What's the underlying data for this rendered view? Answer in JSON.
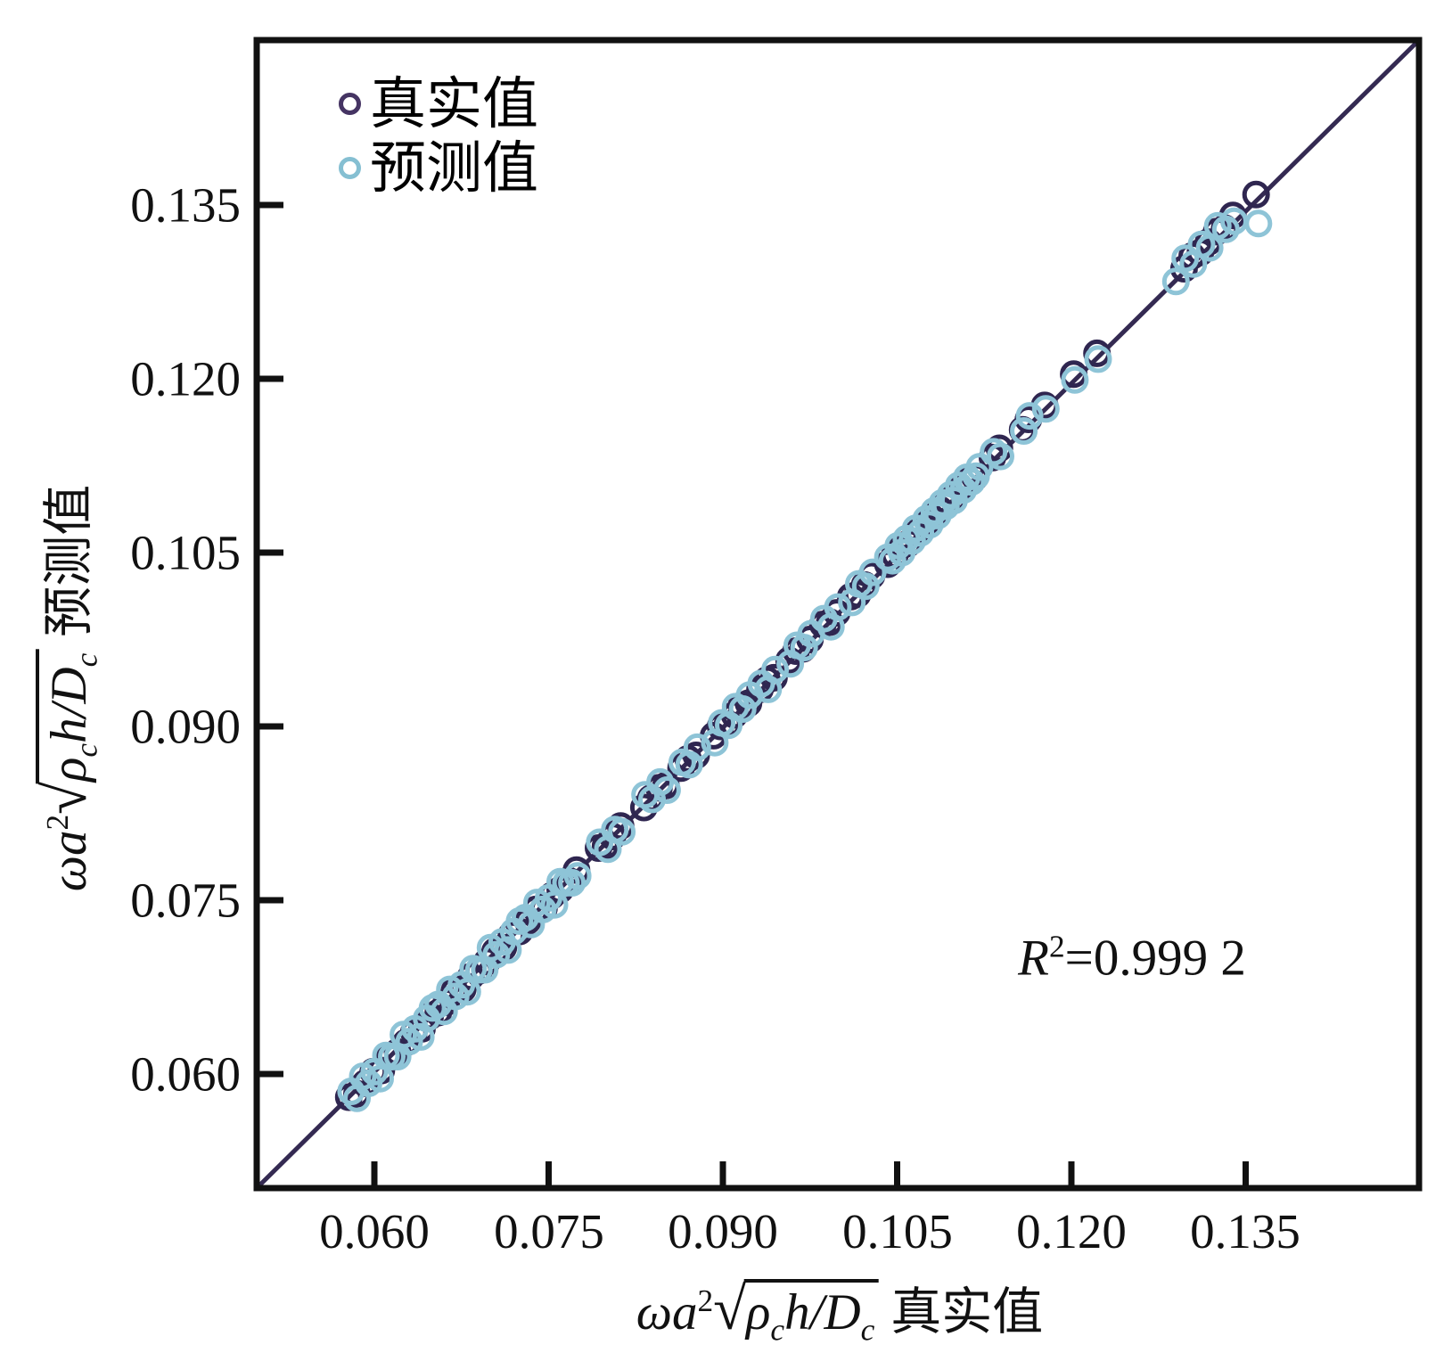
{
  "legend": {
    "items": [
      {
        "label": "真实值",
        "marker": "open-circle",
        "color": "#453463"
      },
      {
        "label": "预测值",
        "marker": "open-circle",
        "color": "#85bfd2"
      }
    ]
  },
  "annotation": {
    "r": "R",
    "sup": "2",
    "value": "=0.999 2"
  },
  "axis_x": {
    "label_parts": {
      "lead": "ωa",
      "sup": "2",
      "sqrt": "√",
      "rho": "ρ",
      "rho_sub": "c",
      "mid": "h/",
      "dee": "D",
      "dee_sub": "c",
      "suffix": "真实值"
    },
    "ticks": [
      "0.060",
      "0.075",
      "0.090",
      "0.105",
      "0.120",
      "0.135"
    ]
  },
  "axis_y": {
    "label_parts": {
      "lead": "ωa",
      "sup": "2",
      "sqrt": "√",
      "rho": "ρ",
      "rho_sub": "c",
      "mid": "h/",
      "dee": "D",
      "dee_sub": "c",
      "suffix": "预测值"
    },
    "ticks": [
      "0.060",
      "0.075",
      "0.090",
      "0.105",
      "0.120",
      "0.135"
    ]
  },
  "chart_data": {
    "type": "scatter",
    "title": "",
    "xlabel": "ωa²√(ρ_c h/D_c) 真实值",
    "ylabel": "ωa²√(ρ_c h/D_c) 预测值",
    "xlim": [
      0.05,
      0.15
    ],
    "ylim": [
      0.05,
      0.15
    ],
    "x_ticks": [
      0.06,
      0.075,
      0.09,
      0.105,
      0.12,
      0.135
    ],
    "y_ticks": [
      0.06,
      0.075,
      0.09,
      0.105,
      0.12,
      0.135
    ],
    "grid": false,
    "legend_position": "top-left",
    "r_squared_text": "R²=0.999 2",
    "diagonal_line": {
      "from": [
        0.05,
        0.05
      ],
      "to": [
        0.15,
        0.15
      ],
      "color": "#342a52",
      "width": 5
    },
    "marker_radius_px": 13,
    "marker_stroke_px": 5,
    "series": [
      {
        "name": "真实值",
        "color": "#2f2650",
        "points": [
          [
            0.0578,
            0.058
          ],
          [
            0.0585,
            0.0583
          ],
          [
            0.0592,
            0.0592
          ],
          [
            0.0599,
            0.0602
          ],
          [
            0.0606,
            0.0603
          ],
          [
            0.0613,
            0.0614
          ],
          [
            0.062,
            0.0619
          ],
          [
            0.0627,
            0.0627
          ],
          [
            0.0634,
            0.0636
          ],
          [
            0.0641,
            0.0639
          ],
          [
            0.0648,
            0.065
          ],
          [
            0.0655,
            0.0653
          ],
          [
            0.0662,
            0.0662
          ],
          [
            0.0669,
            0.0672
          ],
          [
            0.0676,
            0.0673
          ],
          [
            0.0683,
            0.0684
          ],
          [
            0.069,
            0.0689
          ],
          [
            0.0697,
            0.0697
          ],
          [
            0.0704,
            0.0706
          ],
          [
            0.0711,
            0.0709
          ],
          [
            0.0718,
            0.072
          ],
          [
            0.0725,
            0.0723
          ],
          [
            0.0732,
            0.0732
          ],
          [
            0.0739,
            0.0742
          ],
          [
            0.0746,
            0.0743
          ],
          [
            0.0753,
            0.0754
          ],
          [
            0.076,
            0.0759
          ],
          [
            0.0767,
            0.0767
          ],
          [
            0.0774,
            0.0776
          ],
          [
            0.0793,
            0.0795
          ],
          [
            0.0799,
            0.0797
          ],
          [
            0.0805,
            0.0805
          ],
          [
            0.0812,
            0.0814
          ],
          [
            0.0832,
            0.083
          ],
          [
            0.0838,
            0.0838
          ],
          [
            0.0845,
            0.0847
          ],
          [
            0.0851,
            0.0849
          ],
          [
            0.0864,
            0.0864
          ],
          [
            0.087,
            0.0872
          ],
          [
            0.0877,
            0.0875
          ],
          [
            0.0892,
            0.0892
          ],
          [
            0.0898,
            0.09
          ],
          [
            0.0904,
            0.0902
          ],
          [
            0.091,
            0.091
          ],
          [
            0.0916,
            0.0918
          ],
          [
            0.0922,
            0.092
          ],
          [
            0.0932,
            0.0932
          ],
          [
            0.0938,
            0.094
          ],
          [
            0.0944,
            0.0942
          ],
          [
            0.0957,
            0.0957
          ],
          [
            0.0963,
            0.0965
          ],
          [
            0.0969,
            0.0967
          ],
          [
            0.0975,
            0.0975
          ],
          [
            0.0986,
            0.0988
          ],
          [
            0.0992,
            0.099
          ],
          [
            0.0998,
            0.0998
          ],
          [
            0.101,
            0.1012
          ],
          [
            0.1016,
            0.1014
          ],
          [
            0.1022,
            0.1022
          ],
          [
            0.1028,
            0.103
          ],
          [
            0.1042,
            0.104
          ],
          [
            0.1048,
            0.1048
          ],
          [
            0.1054,
            0.1056
          ],
          [
            0.106,
            0.1058
          ],
          [
            0.1066,
            0.1066
          ],
          [
            0.1072,
            0.1074
          ],
          [
            0.1078,
            0.1076
          ],
          [
            0.1087,
            0.1087
          ],
          [
            0.1093,
            0.1095
          ],
          [
            0.1099,
            0.1097
          ],
          [
            0.1105,
            0.1105
          ],
          [
            0.1111,
            0.1113
          ],
          [
            0.1117,
            0.1115
          ],
          [
            0.1132,
            0.1132
          ],
          [
            0.1138,
            0.114
          ],
          [
            0.1158,
            0.1156
          ],
          [
            0.1163,
            0.1165
          ],
          [
            0.1177,
            0.1177
          ],
          [
            0.1202,
            0.1204
          ],
          [
            0.1222,
            0.1222
          ],
          [
            0.1297,
            0.1295
          ],
          [
            0.1304,
            0.1306
          ],
          [
            0.1311,
            0.1309
          ],
          [
            0.1318,
            0.1318
          ],
          [
            0.1325,
            0.1327
          ],
          [
            0.1332,
            0.133
          ],
          [
            0.1339,
            0.1341
          ],
          [
            0.1359,
            0.1359
          ]
        ]
      },
      {
        "name": "预测值",
        "color": "#8ec4d7",
        "points": [
          [
            0.058,
            0.0585
          ],
          [
            0.0585,
            0.0579
          ],
          [
            0.059,
            0.0598
          ],
          [
            0.0595,
            0.0592
          ],
          [
            0.06,
            0.0602
          ],
          [
            0.0605,
            0.0596
          ],
          [
            0.061,
            0.0616
          ],
          [
            0.0615,
            0.0615
          ],
          [
            0.062,
            0.0615
          ],
          [
            0.0625,
            0.0634
          ],
          [
            0.063,
            0.0628
          ],
          [
            0.0635,
            0.0639
          ],
          [
            0.064,
            0.0632
          ],
          [
            0.0645,
            0.0648
          ],
          [
            0.065,
            0.0657
          ],
          [
            0.0655,
            0.066
          ],
          [
            0.066,
            0.0654
          ],
          [
            0.0665,
            0.0673
          ],
          [
            0.067,
            0.0667
          ],
          [
            0.0675,
            0.0677
          ],
          [
            0.068,
            0.0671
          ],
          [
            0.0685,
            0.0691
          ],
          [
            0.069,
            0.069
          ],
          [
            0.0695,
            0.069
          ],
          [
            0.07,
            0.0709
          ],
          [
            0.0705,
            0.0703
          ],
          [
            0.071,
            0.0714
          ],
          [
            0.0715,
            0.0707
          ],
          [
            0.072,
            0.0723
          ],
          [
            0.0725,
            0.0732
          ],
          [
            0.073,
            0.0735
          ],
          [
            0.0735,
            0.0729
          ],
          [
            0.074,
            0.0748
          ],
          [
            0.0745,
            0.0742
          ],
          [
            0.075,
            0.0752
          ],
          [
            0.0755,
            0.0746
          ],
          [
            0.076,
            0.0766
          ],
          [
            0.0765,
            0.0765
          ],
          [
            0.077,
            0.0765
          ],
          [
            0.0775,
            0.0771
          ],
          [
            0.0794,
            0.08
          ],
          [
            0.0801,
            0.0794
          ],
          [
            0.0807,
            0.0811
          ],
          [
            0.0813,
            0.0809
          ],
          [
            0.0833,
            0.0841
          ],
          [
            0.0839,
            0.0837
          ],
          [
            0.0846,
            0.0852
          ],
          [
            0.0852,
            0.0845
          ],
          [
            0.0865,
            0.0869
          ],
          [
            0.0871,
            0.0867
          ],
          [
            0.0878,
            0.0882
          ],
          [
            0.0893,
            0.0886
          ],
          [
            0.0899,
            0.0903
          ],
          [
            0.0905,
            0.0901
          ],
          [
            0.0911,
            0.0917
          ],
          [
            0.0917,
            0.0915
          ],
          [
            0.0923,
            0.0927
          ],
          [
            0.0933,
            0.0937
          ],
          [
            0.0939,
            0.0932
          ],
          [
            0.0945,
            0.0949
          ],
          [
            0.0958,
            0.0954
          ],
          [
            0.0964,
            0.097
          ],
          [
            0.097,
            0.0968
          ],
          [
            0.0976,
            0.098
          ],
          [
            0.0987,
            0.0993
          ],
          [
            0.0993,
            0.0986
          ],
          [
            0.0999,
            0.1003
          ],
          [
            0.1011,
            0.1007
          ],
          [
            0.1017,
            0.1023
          ],
          [
            0.1023,
            0.1021
          ],
          [
            0.1029,
            0.1033
          ],
          [
            0.1042,
            0.1046
          ],
          [
            0.1046,
            0.1043
          ],
          [
            0.1051,
            0.1056
          ],
          [
            0.1054,
            0.105
          ],
          [
            0.1058,
            0.1062
          ],
          [
            0.1063,
            0.106
          ],
          [
            0.1066,
            0.1071
          ],
          [
            0.107,
            0.1067
          ],
          [
            0.1075,
            0.1079
          ],
          [
            0.1078,
            0.1074
          ],
          [
            0.1082,
            0.1086
          ],
          [
            0.1085,
            0.1082
          ],
          [
            0.1089,
            0.1093
          ],
          [
            0.1092,
            0.109
          ],
          [
            0.1096,
            0.11
          ],
          [
            0.1099,
            0.1095
          ],
          [
            0.1103,
            0.1108
          ],
          [
            0.1107,
            0.1104
          ],
          [
            0.111,
            0.1115
          ],
          [
            0.1114,
            0.1111
          ],
          [
            0.1118,
            0.1116
          ],
          [
            0.1121,
            0.1124
          ],
          [
            0.1133,
            0.1137
          ],
          [
            0.1139,
            0.1133
          ],
          [
            0.1159,
            0.1155
          ],
          [
            0.1164,
            0.1168
          ],
          [
            0.1178,
            0.1174
          ],
          [
            0.1203,
            0.1199
          ],
          [
            0.1223,
            0.1217
          ],
          [
            0.129,
            0.1284
          ],
          [
            0.1298,
            0.1304
          ],
          [
            0.1305,
            0.1299
          ],
          [
            0.1312,
            0.1316
          ],
          [
            0.1319,
            0.1313
          ],
          [
            0.1326,
            0.1332
          ],
          [
            0.1333,
            0.1329
          ],
          [
            0.134,
            0.1336
          ],
          [
            0.1361,
            0.1334
          ]
        ]
      }
    ]
  }
}
